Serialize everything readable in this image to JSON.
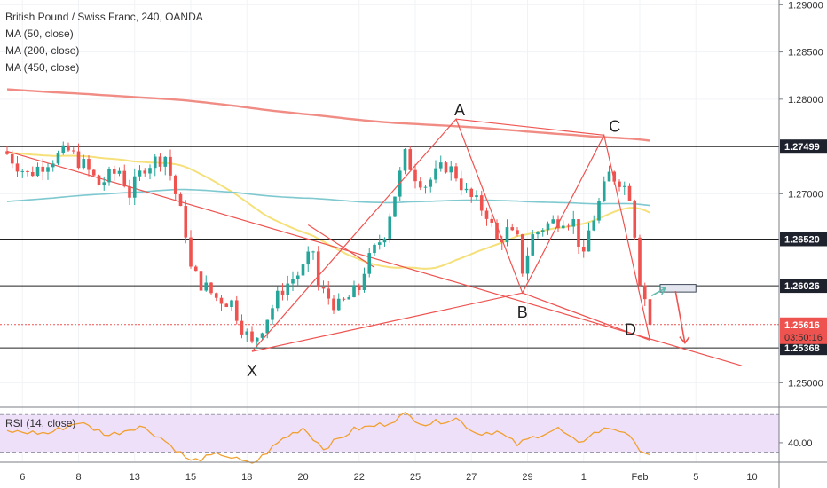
{
  "legend": {
    "symbol": "British Pound / Swiss Franc, 240, OANDA",
    "ma50": "MA (50, close)",
    "ma200": "MA (200, close)",
    "ma450": "MA (450, close)"
  },
  "rsi_legend": "RSI (14, close)",
  "colors": {
    "up": "#26a69a",
    "down": "#ef5350",
    "ma50": "#f5e07a",
    "ma200": "#7ec8cf",
    "ma450": "#f08c84",
    "rsi": "#f0a030",
    "rsi_band": "#efe0fa",
    "pattern": "#ef5350",
    "pointer": "#5dbcae"
  },
  "chart_data": {
    "type": "candlestick",
    "symbol": "GBPCHF",
    "timeframe": "240",
    "ylim": [
      1.2475,
      1.2905
    ],
    "price_ticks": [
      "1.29000",
      "1.28500",
      "1.28000",
      "1.27000",
      "1.25000"
    ],
    "levels": [
      {
        "label": "1.27499",
        "value": 1.27499
      },
      {
        "label": "1.26520",
        "value": 1.2652
      },
      {
        "label": "1.26026",
        "value": 1.26026
      },
      {
        "label": "1.25368",
        "value": 1.25368
      }
    ],
    "current_price": {
      "label": "1.25616",
      "value": 1.25616,
      "countdown": "03:50:16"
    },
    "x_ticks": [
      {
        "label": "6",
        "bar": 3
      },
      {
        "label": "8",
        "bar": 14
      },
      {
        "label": "13",
        "bar": 25
      },
      {
        "label": "15",
        "bar": 36
      },
      {
        "label": "18",
        "bar": 47
      },
      {
        "label": "20",
        "bar": 58
      },
      {
        "label": "22",
        "bar": 69
      },
      {
        "label": "25",
        "bar": 80
      },
      {
        "label": "27",
        "bar": 91
      },
      {
        "label": "29",
        "bar": 102
      },
      {
        "label": "1",
        "bar": 113
      },
      {
        "label": "Feb",
        "bar": 124
      },
      {
        "label": "5",
        "bar": 135
      },
      {
        "label": "10",
        "bar": 146
      }
    ],
    "pattern": {
      "name": "XABCD",
      "points": [
        {
          "label": "X",
          "bar": 48,
          "price": 1.2533
        },
        {
          "label": "A",
          "bar": 88,
          "price": 1.2779
        },
        {
          "label": "B",
          "bar": 101,
          "price": 1.2595
        },
        {
          "label": "C",
          "bar": 117,
          "price": 1.2762
        },
        {
          "label": "D",
          "bar": 126,
          "price": 1.2545
        }
      ]
    },
    "trendlines": [
      {
        "from": {
          "bar": 0,
          "price": 1.2745
        },
        "to": {
          "bar": 144,
          "price": 1.2518
        }
      },
      {
        "from": {
          "bar": 59,
          "price": 1.2667
        },
        "to": {
          "bar": 72,
          "price": 1.2622
        }
      }
    ],
    "close_anchors": [
      [
        0,
        1.2742
      ],
      [
        4,
        1.272
      ],
      [
        8,
        1.2735
      ],
      [
        12,
        1.2745
      ],
      [
        15,
        1.273
      ],
      [
        18,
        1.271
      ],
      [
        22,
        1.2725
      ],
      [
        24,
        1.27
      ],
      [
        27,
        1.273
      ],
      [
        31,
        1.274
      ],
      [
        33,
        1.27
      ],
      [
        35,
        1.266
      ],
      [
        36,
        1.262
      ],
      [
        38,
        1.2605
      ],
      [
        41,
        1.259
      ],
      [
        44,
        1.2585
      ],
      [
        46,
        1.256
      ],
      [
        48,
        1.254
      ],
      [
        50,
        1.256
      ],
      [
        52,
        1.258
      ],
      [
        54,
        1.26
      ],
      [
        56,
        1.261
      ],
      [
        58,
        1.262
      ],
      [
        60,
        1.264
      ],
      [
        61,
        1.26
      ],
      [
        63,
        1.259
      ],
      [
        65,
        1.258
      ],
      [
        67,
        1.259
      ],
      [
        69,
        1.26
      ],
      [
        70,
        1.262
      ],
      [
        72,
        1.264
      ],
      [
        74,
        1.266
      ],
      [
        76,
        1.27
      ],
      [
        78,
        1.274
      ],
      [
        80,
        1.272
      ],
      [
        82,
        1.271
      ],
      [
        84,
        1.272
      ],
      [
        86,
        1.273
      ],
      [
        88,
        1.272
      ],
      [
        90,
        1.27
      ],
      [
        92,
        1.269
      ],
      [
        94,
        1.268
      ],
      [
        96,
        1.265
      ],
      [
        98,
        1.266
      ],
      [
        100,
        1.265
      ],
      [
        101,
        1.262
      ],
      [
        103,
        1.2655
      ],
      [
        105,
        1.2665
      ],
      [
        107,
        1.267
      ],
      [
        109,
        1.2675
      ],
      [
        111,
        1.267
      ],
      [
        112,
        1.265
      ],
      [
        113,
        1.263
      ],
      [
        114,
        1.266
      ],
      [
        116,
        1.269
      ],
      [
        118,
        1.272
      ],
      [
        120,
        1.2715
      ],
      [
        122,
        1.27
      ],
      [
        123,
        1.266
      ],
      [
        124,
        1.261
      ],
      [
        125,
        1.259
      ],
      [
        126,
        1.2562
      ]
    ],
    "forecast_box": {
      "bar_from": 128,
      "bar_to": 135,
      "price_from": 1.2596,
      "price_to": 1.2604
    },
    "rsi": {
      "ticks": [
        "40.00"
      ],
      "band": [
        30,
        70
      ],
      "series_anchors": [
        [
          0,
          52
        ],
        [
          8,
          50
        ],
        [
          14,
          62
        ],
        [
          20,
          48
        ],
        [
          26,
          58
        ],
        [
          30,
          46
        ],
        [
          36,
          20
        ],
        [
          42,
          28
        ],
        [
          48,
          16
        ],
        [
          54,
          44
        ],
        [
          58,
          56
        ],
        [
          62,
          34
        ],
        [
          68,
          54
        ],
        [
          74,
          60
        ],
        [
          78,
          70
        ],
        [
          82,
          60
        ],
        [
          88,
          66
        ],
        [
          92,
          50
        ],
        [
          96,
          52
        ],
        [
          100,
          38
        ],
        [
          104,
          48
        ],
        [
          108,
          55
        ],
        [
          112,
          38
        ],
        [
          114,
          48
        ],
        [
          118,
          56
        ],
        [
          121,
          52
        ],
        [
          123,
          38
        ],
        [
          125,
          30
        ],
        [
          126,
          28
        ]
      ]
    }
  }
}
